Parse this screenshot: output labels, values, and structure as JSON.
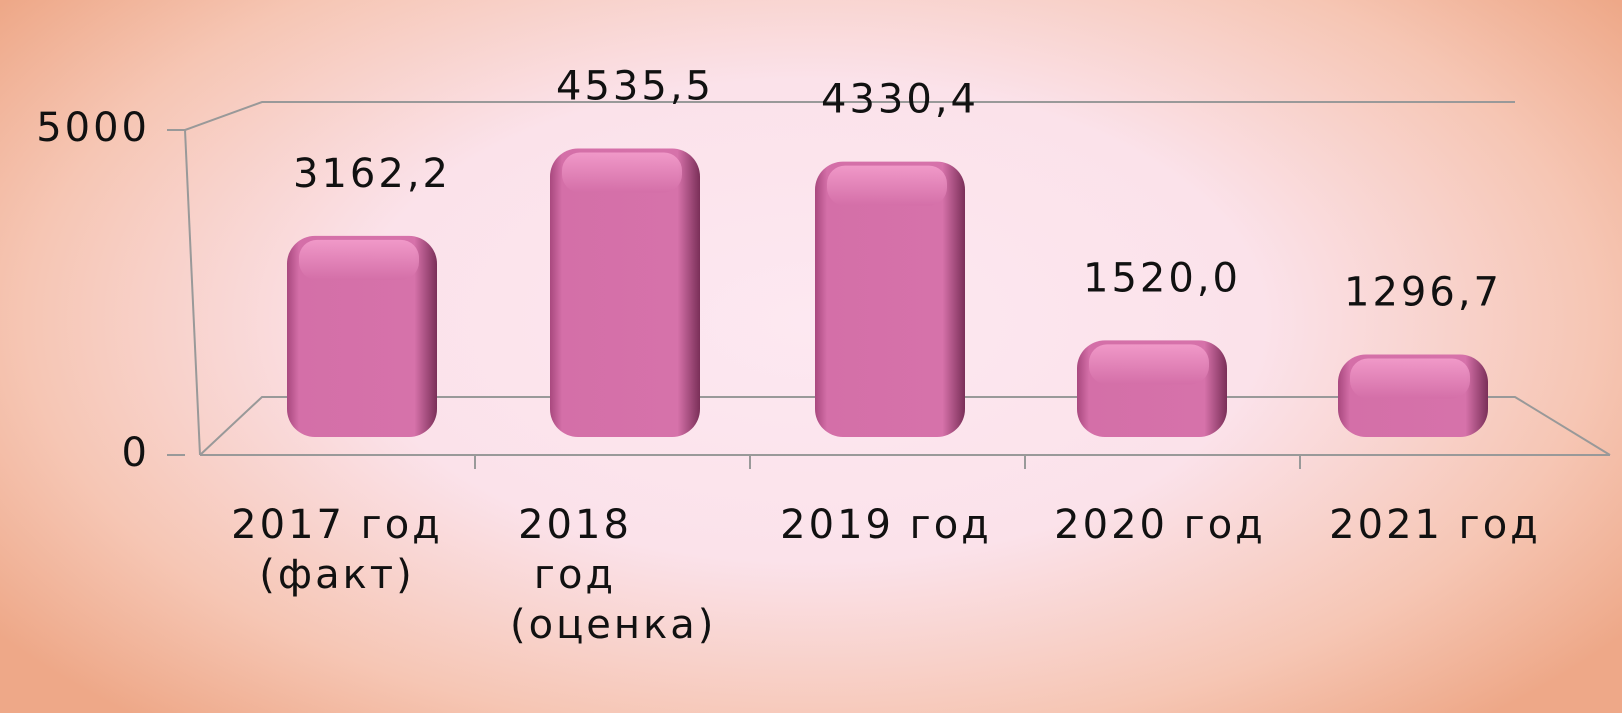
{
  "chart_data": {
    "type": "bar",
    "categories": [
      "2017 год (факт)",
      "2018 год (оценка)",
      "2019 год",
      "2020 год",
      "2021 год"
    ],
    "values": [
      3162.2,
      4535.5,
      4330.4,
      1520.0,
      1296.7
    ],
    "value_labels": [
      "3162,2",
      "4535,5",
      "4330,4",
      "1520,0",
      "1296,7"
    ],
    "color": "#d46fa8",
    "ylim": [
      0,
      5000
    ],
    "yticks": [
      0,
      5000
    ],
    "grid": true
  }
}
